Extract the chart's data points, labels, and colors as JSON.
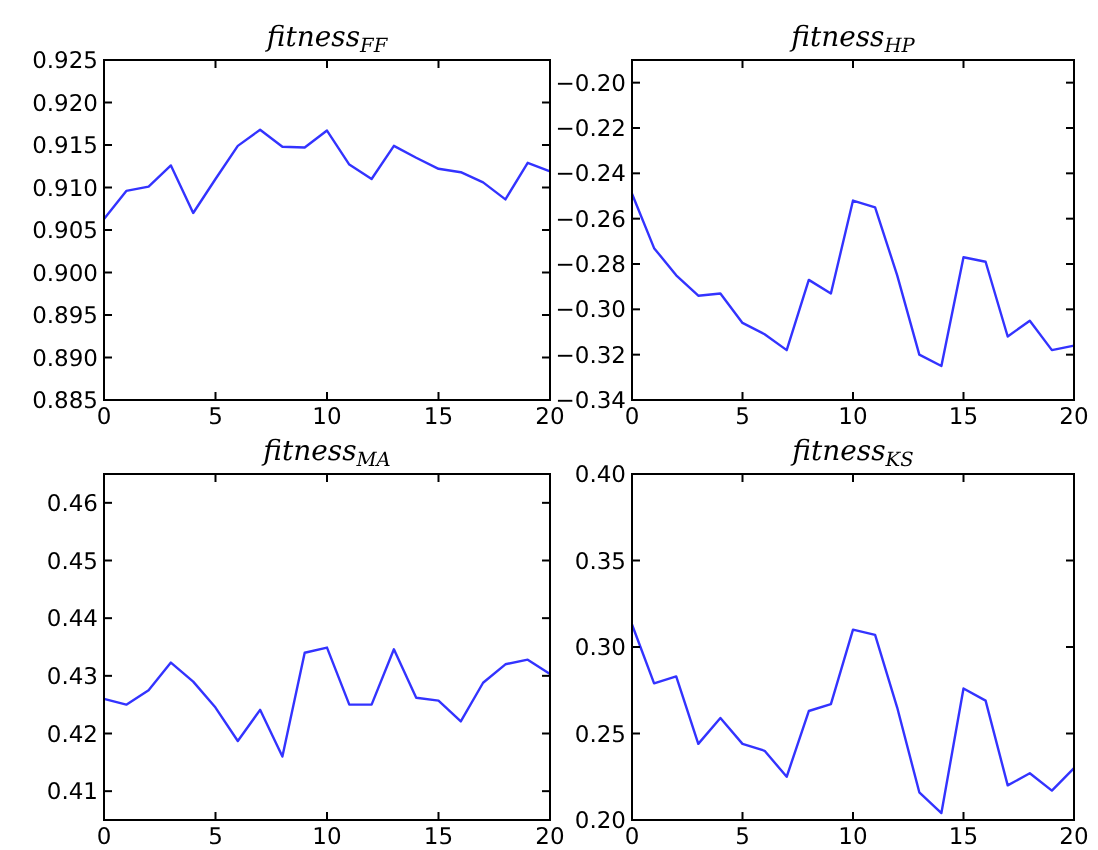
{
  "chart_data": [
    {
      "type": "line",
      "title": "fitness$_{FF}$",
      "x": [
        0,
        1,
        2,
        3,
        4,
        5,
        6,
        7,
        8,
        9,
        10,
        11,
        12,
        13,
        14,
        15,
        16,
        17,
        18,
        19,
        20
      ],
      "series": [
        {
          "color": "#3333ff",
          "values": [
            0.9063,
            0.9096,
            0.9101,
            0.9126,
            0.907,
            0.911,
            0.9149,
            0.9168,
            0.9148,
            0.9147,
            0.9167,
            0.9127,
            0.911,
            0.9149,
            0.9135,
            0.9122,
            0.9118,
            0.9106,
            0.9086,
            0.9129,
            0.9119
          ]
        }
      ],
      "xlim": [
        0,
        20
      ],
      "xticks": [
        0,
        5,
        10,
        15,
        20
      ],
      "ylim": [
        0.885,
        0.925
      ],
      "yticks": [
        0.885,
        {
          "value": 0.89,
          "label": "0.890"
        },
        0.895,
        {
          "value": 0.9,
          "label": "0.900"
        },
        0.905,
        {
          "value": 0.91,
          "label": "0.910"
        },
        0.915,
        {
          "value": 0.92,
          "label": "0.920"
        },
        0.925
      ],
      "marker": "none",
      "line_style": "solid"
    },
    {
      "type": "line",
      "title": "fitness$_{HP}$",
      "x": [
        0,
        1,
        2,
        3,
        4,
        5,
        6,
        7,
        8,
        9,
        10,
        11,
        12,
        13,
        14,
        15,
        16,
        17,
        18,
        19,
        20
      ],
      "series": [
        {
          "color": "#3333ff",
          "values": [
            -0.249,
            -0.273,
            -0.285,
            -0.294,
            -0.293,
            -0.306,
            -0.311,
            -0.318,
            -0.287,
            -0.293,
            -0.252,
            -0.255,
            -0.285,
            -0.32,
            -0.325,
            -0.277,
            -0.279,
            -0.312,
            -0.305,
            -0.318,
            -0.316
          ]
        }
      ],
      "xlim": [
        0,
        20
      ],
      "xticks": [
        0,
        5,
        10,
        15,
        20
      ],
      "ylim": [
        -0.34,
        -0.19
      ],
      "yticks": [
        {
          "value": -0.34,
          "label": "−0.34"
        },
        {
          "value": -0.32,
          "label": "−0.32"
        },
        {
          "value": -0.3,
          "label": "−0.30"
        },
        {
          "value": -0.28,
          "label": "−0.28"
        },
        {
          "value": -0.26,
          "label": "−0.26"
        },
        {
          "value": -0.24,
          "label": "−0.24"
        },
        {
          "value": -0.22,
          "label": "−0.22"
        },
        {
          "value": -0.2,
          "label": "−0.20"
        }
      ],
      "marker": "none",
      "line_style": "solid"
    },
    {
      "type": "line",
      "title": "fitness$_{MA}$",
      "x": [
        0,
        1,
        2,
        3,
        4,
        5,
        6,
        7,
        8,
        9,
        10,
        11,
        12,
        13,
        14,
        15,
        16,
        17,
        18,
        19,
        20
      ],
      "series": [
        {
          "color": "#3333ff",
          "values": [
            0.426,
            0.425,
            0.4275,
            0.4323,
            0.429,
            0.4245,
            0.4187,
            0.4241,
            0.416,
            0.434,
            0.4349,
            0.425,
            0.425,
            0.4346,
            0.4262,
            0.4257,
            0.4221,
            0.4288,
            0.432,
            0.4328,
            0.4303
          ]
        }
      ],
      "xlim": [
        0,
        20
      ],
      "xticks": [
        0,
        5,
        10,
        15,
        20
      ],
      "ylim": [
        0.405,
        0.465
      ],
      "yticks": [
        0.41,
        0.42,
        0.43,
        0.44,
        0.45,
        0.46
      ],
      "marker": "none",
      "line_style": "solid"
    },
    {
      "type": "line",
      "title": "fitness$_{KS}$",
      "x": [
        0,
        1,
        2,
        3,
        4,
        5,
        6,
        7,
        8,
        9,
        10,
        11,
        12,
        13,
        14,
        15,
        16,
        17,
        18,
        19,
        20
      ],
      "series": [
        {
          "color": "#3333ff",
          "values": [
            0.313,
            0.279,
            0.283,
            0.244,
            0.259,
            0.244,
            0.24,
            0.225,
            0.263,
            0.267,
            0.31,
            0.307,
            0.265,
            0.216,
            0.204,
            0.276,
            0.269,
            0.22,
            0.227,
            0.217,
            0.23
          ]
        }
      ],
      "xlim": [
        0,
        20
      ],
      "xticks": [
        0,
        5,
        10,
        15,
        20
      ],
      "ylim": [
        0.2,
        0.4
      ],
      "yticks": [
        {
          "value": 0.2,
          "label": "0.20"
        },
        {
          "value": 0.25,
          "label": "0.25"
        },
        {
          "value": 0.3,
          "label": "0.30"
        },
        {
          "value": 0.35,
          "label": "0.35"
        },
        {
          "value": 0.4,
          "label": "0.40"
        }
      ],
      "marker": "none",
      "line_style": "solid"
    }
  ]
}
